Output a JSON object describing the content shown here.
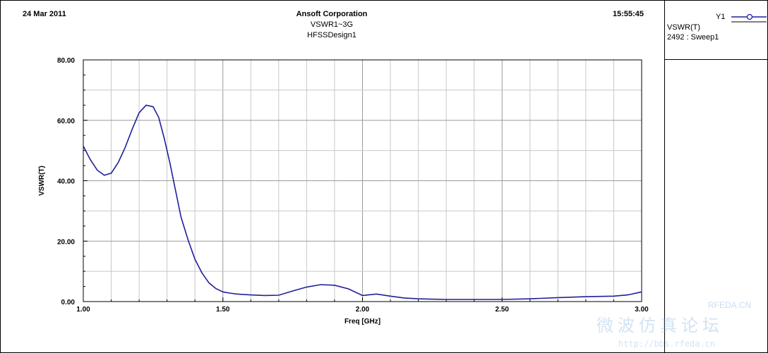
{
  "header": {
    "date": "24 Mar 2011",
    "company": "Ansoft Corporation",
    "subtitle1": "VSWR1~3G",
    "subtitle2": "HFSSDesign1",
    "time": "15:55:45"
  },
  "legend": {
    "axis": "Y1",
    "trace_name": "VSWR(T)",
    "sweep": "2492 : Sweep1",
    "line_color": "#1f1f9c"
  },
  "watermark": {
    "site": "RFEDA.CN",
    "chinese": "微波仿真论坛",
    "url": "http://bbs.rfeda.cn"
  },
  "chart_data": {
    "type": "line",
    "xlabel": "Freq [GHz]",
    "ylabel": "VSWR(T)",
    "xlim": [
      1.0,
      3.0
    ],
    "ylim": [
      0,
      80
    ],
    "x_ticks": [
      "1.00",
      "1.50",
      "2.00",
      "2.50",
      "3.00"
    ],
    "y_ticks": [
      "0.00",
      "20.00",
      "40.00",
      "60.00",
      "80.00"
    ],
    "grid": true,
    "series": [
      {
        "name": "VSWR(T)",
        "color": "#1f1f9c",
        "x": [
          1.0,
          1.025,
          1.05,
          1.075,
          1.1,
          1.125,
          1.15,
          1.175,
          1.2,
          1.225,
          1.25,
          1.27,
          1.29,
          1.31,
          1.33,
          1.35,
          1.375,
          1.4,
          1.425,
          1.45,
          1.475,
          1.5,
          1.525,
          1.55,
          1.6,
          1.65,
          1.7,
          1.75,
          1.8,
          1.85,
          1.9,
          1.95,
          2.0,
          2.05,
          2.1,
          2.15,
          2.2,
          2.25,
          2.3,
          2.4,
          2.5,
          2.6,
          2.7,
          2.8,
          2.9,
          2.95,
          3.0
        ],
        "values": [
          51.5,
          47.0,
          43.5,
          41.8,
          42.5,
          46.0,
          51.0,
          57.0,
          62.5,
          65.0,
          64.5,
          61.0,
          54.0,
          46.0,
          37.0,
          28.0,
          20.5,
          14.0,
          9.5,
          6.2,
          4.3,
          3.2,
          2.8,
          2.5,
          2.2,
          2.0,
          2.1,
          3.5,
          4.8,
          5.6,
          5.4,
          4.2,
          2.0,
          2.5,
          1.8,
          1.2,
          0.9,
          0.8,
          0.7,
          0.7,
          0.7,
          0.9,
          1.3,
          1.6,
          1.8,
          2.2,
          3.2
        ]
      }
    ]
  }
}
